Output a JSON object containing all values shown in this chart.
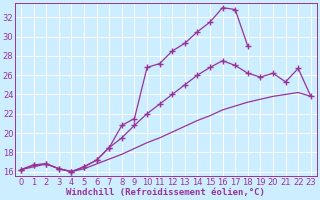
{
  "xlabel": "Windchill (Refroidissement éolien,°C)",
  "bg_color": "#cceeff",
  "line_color": "#993399",
  "grid_color": "#ffffff",
  "xlim": [
    -0.5,
    23.5
  ],
  "ylim": [
    15.5,
    33.5
  ],
  "yticks": [
    16,
    18,
    20,
    22,
    24,
    26,
    28,
    30,
    32
  ],
  "xticks": [
    0,
    1,
    2,
    3,
    4,
    5,
    6,
    7,
    8,
    9,
    10,
    11,
    12,
    13,
    14,
    15,
    16,
    17,
    18,
    19,
    20,
    21,
    22,
    23
  ],
  "series1_x": [
    0,
    1,
    2,
    3,
    4,
    5,
    6,
    7,
    8,
    9,
    10,
    11,
    12,
    13,
    14,
    15,
    16,
    17,
    18
  ],
  "series1_y": [
    16.2,
    16.7,
    16.8,
    16.3,
    16.0,
    16.5,
    17.2,
    18.5,
    20.8,
    21.5,
    26.8,
    27.2,
    28.5,
    29.3,
    30.5,
    31.5,
    33.0,
    32.8,
    29.0
  ],
  "series2_x": [
    0,
    1,
    2,
    3,
    4,
    5,
    6,
    7,
    8,
    9,
    10,
    11,
    12,
    13,
    14,
    15,
    16,
    17,
    18,
    19,
    20,
    21,
    22,
    23
  ],
  "series2_y": [
    16.2,
    16.7,
    16.8,
    16.3,
    16.0,
    16.5,
    17.2,
    18.5,
    19.5,
    20.8,
    22.0,
    23.0,
    24.0,
    25.0,
    26.0,
    26.8,
    27.5,
    27.0,
    26.2,
    25.8,
    26.2,
    25.3,
    26.7,
    23.8
  ],
  "series3_x": [
    0,
    1,
    2,
    3,
    4,
    5,
    6,
    7,
    8,
    9,
    10,
    11,
    12,
    13,
    14,
    15,
    16,
    17,
    18,
    19,
    20,
    21,
    22,
    23
  ],
  "series3_y": [
    16.2,
    16.5,
    16.8,
    16.3,
    16.0,
    16.3,
    16.8,
    17.3,
    17.8,
    18.4,
    19.0,
    19.5,
    20.1,
    20.7,
    21.3,
    21.8,
    22.4,
    22.8,
    23.2,
    23.5,
    23.8,
    24.0,
    24.2,
    23.8
  ],
  "marker": "+",
  "markersize": 4,
  "markeredgewidth": 1.0,
  "linewidth": 0.9,
  "font_size_xlabel": 6.5,
  "font_size_tick": 6.0
}
